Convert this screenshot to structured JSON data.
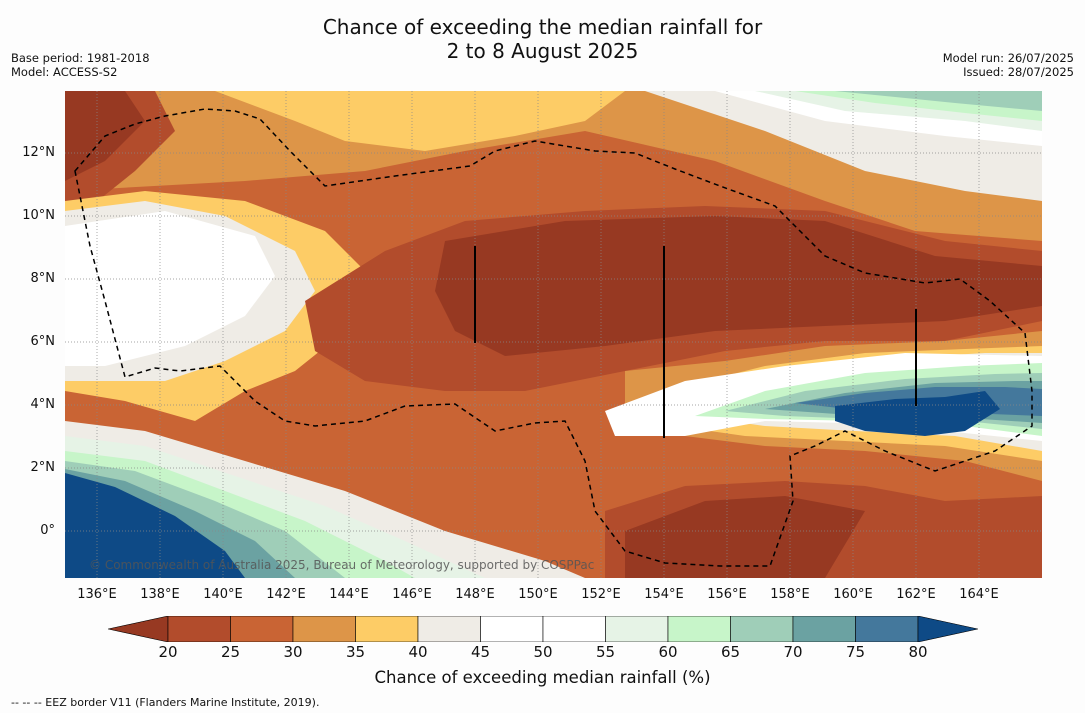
{
  "title": {
    "line1": "Chance of exceeding the median rainfall for",
    "line2": "2 to 8 August 2025"
  },
  "meta_left": {
    "base_period": "Base period: 1981-2018",
    "model": "Model: ACCESS-S2"
  },
  "meta_right": {
    "model_run": "Model run: 26/07/2025",
    "issued": "Issued: 28/07/2025"
  },
  "map": {
    "lat_labels": [
      "12°N",
      "10°N",
      "8°N",
      "6°N",
      "4°N",
      "2°N",
      "0°"
    ],
    "lon_labels": [
      "136°E",
      "138°E",
      "140°E",
      "142°E",
      "144°E",
      "146°E",
      "148°E",
      "150°E",
      "152°E",
      "154°E",
      "156°E",
      "158°E",
      "160°E",
      "162°E",
      "164°E"
    ],
    "copyright": "© Commonwealth of Australia 2025, Bureau of Meteorology, supported by COSPPac"
  },
  "colorbar": {
    "label": "Chance of exceeding median rainfall (%)",
    "ticks": [
      "20",
      "25",
      "30",
      "35",
      "40",
      "45",
      "50",
      "55",
      "60",
      "65",
      "70",
      "75",
      "80"
    ],
    "colors": [
      "#973922",
      "#b24c2c",
      "#c96434",
      "#dd9548",
      "#fdcc66",
      "#efece6",
      "#ffffff",
      "#ffffff",
      "#e6f3e6",
      "#c7f5c9",
      "#9fceb8",
      "#6ba2a2",
      "#44789c",
      "#0e4a86"
    ]
  },
  "footnote": "--  --  -- EEZ border V11 (Flanders Marine Institute, 2019)."
}
